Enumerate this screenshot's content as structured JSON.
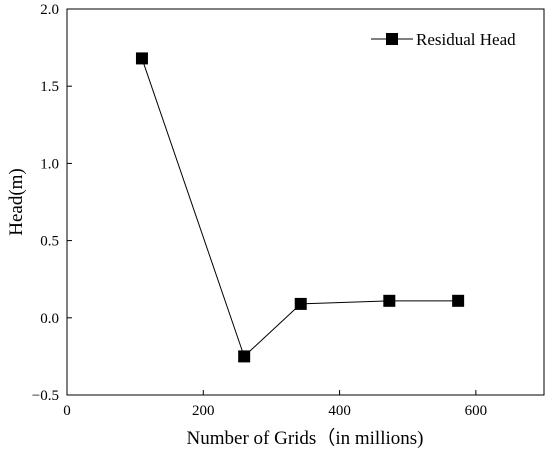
{
  "chart_data": {
    "type": "line",
    "x": [
      110,
      260,
      343,
      473,
      574
    ],
    "series": [
      {
        "name": "Residual Head",
        "values": [
          1.68,
          -0.25,
          0.09,
          0.11,
          0.11
        ]
      }
    ],
    "xlabel": "Number of Grids（in millions)",
    "ylabel": "Head(m)",
    "xlim": [
      0,
      700
    ],
    "ylim": [
      -0.5,
      2.0
    ],
    "xticks": [
      0,
      200,
      400,
      600
    ],
    "xtick_labels": [
      "0",
      "200",
      "400",
      "600"
    ],
    "yticks": [
      -0.5,
      0.0,
      0.5,
      1.0,
      1.5,
      2.0
    ],
    "ytick_labels": [
      "−0.5",
      "0.0",
      "0.5",
      "1.0",
      "1.5",
      "2.0"
    ],
    "grid": false,
    "legend_position": "top-right",
    "marker": "square",
    "colors": {
      "series": "#000000",
      "axes": "#000000",
      "background": "#ffffff"
    }
  }
}
